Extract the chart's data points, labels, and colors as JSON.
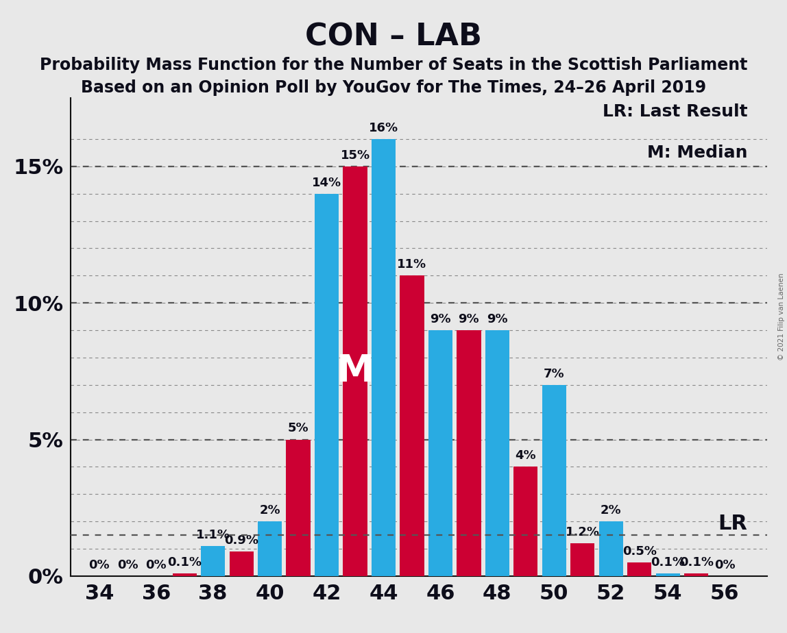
{
  "title": "CON – LAB",
  "subtitle1": "Probability Mass Function for the Number of Seats in the Scottish Parliament",
  "subtitle2": "Based on an Opinion Poll by YouGov for The Times, 24–26 April 2019",
  "copyright": "© 2021 Filip van Laenen",
  "seats_cyan": [
    38,
    40,
    42,
    44,
    46,
    48,
    50,
    52,
    54
  ],
  "vals_cyan": [
    1.1,
    2.0,
    14.0,
    16.0,
    9.0,
    9.0,
    7.0,
    2.0,
    0.1
  ],
  "seats_red": [
    37,
    39,
    41,
    43,
    45,
    47,
    49,
    51,
    53,
    55
  ],
  "vals_red": [
    0.1,
    0.9,
    5.0,
    15.0,
    11.0,
    9.0,
    4.0,
    1.2,
    0.5,
    0.1
  ],
  "cyan_bar_labels": {
    "38": "1.1%",
    "40": "2%",
    "42": "14%",
    "44": "16%",
    "46": "9%",
    "48": "9%",
    "50": "7%",
    "52": "2%",
    "54": "0.1%"
  },
  "red_bar_labels": {
    "37": "0.1%",
    "39": "0.9%",
    "41": "5%",
    "43": "15%",
    "45": "11%",
    "47": "9%",
    "49": "4%",
    "51": "1.2%",
    "53": "0.5%",
    "55": "0.1%"
  },
  "zero_labels": [
    {
      "x": 34,
      "label": "0%"
    },
    {
      "x": 35,
      "label": "0%"
    },
    {
      "x": 36,
      "label": "0%"
    },
    {
      "x": 56,
      "label": "0%"
    }
  ],
  "lr_value": 1.5,
  "median_x": 43,
  "median_y": 7.5,
  "median_label": "M",
  "xtick_positions": [
    34,
    36,
    38,
    40,
    42,
    44,
    46,
    48,
    50,
    52,
    54,
    56
  ],
  "yticks": [
    0,
    5,
    10,
    15
  ],
  "ylim_max": 17.5,
  "xlim_min": 33.0,
  "xlim_max": 57.5,
  "bar_width": 0.85,
  "cyan_color": "#29ABE2",
  "red_color": "#CC0033",
  "bg_color": "#E8E8E8",
  "grid_minor_color": "#888888",
  "grid_major_color": "#555555",
  "spine_color": "#111111",
  "title_color": "#0d0d1a",
  "title_fontsize": 32,
  "subtitle_fontsize": 17,
  "axis_tick_fontsize": 22,
  "bar_label_fontsize": 13,
  "legend_fontsize": 18,
  "lr_label": "LR",
  "legend_lr": "LR: Last Result",
  "legend_m": "M: Median",
  "copyright_text": "© 2021 Filip van Laenen"
}
